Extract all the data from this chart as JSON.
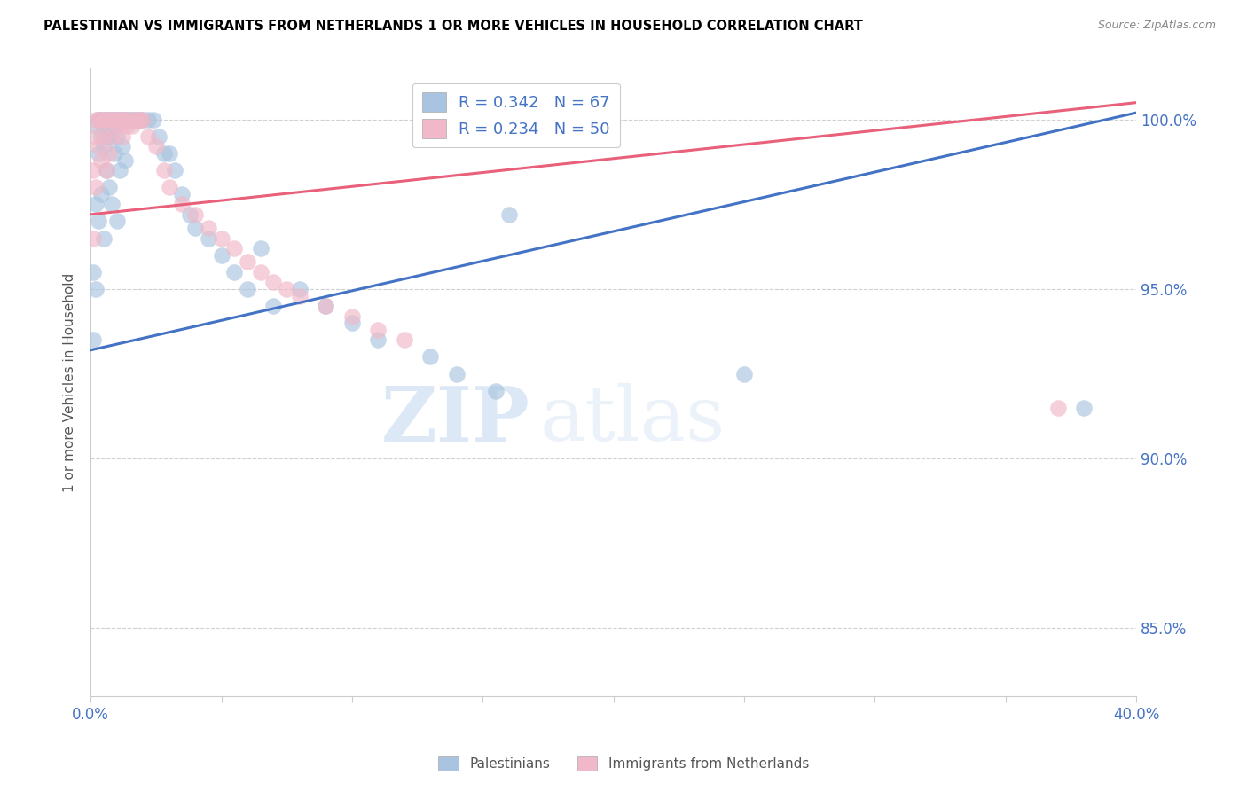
{
  "title": "PALESTINIAN VS IMMIGRANTS FROM NETHERLANDS 1 OR MORE VEHICLES IN HOUSEHOLD CORRELATION CHART",
  "source": "Source: ZipAtlas.com",
  "ylabel": "1 or more Vehicles in Household",
  "ytick_vals": [
    85.0,
    90.0,
    95.0,
    100.0
  ],
  "ytick_labels": [
    "85.0%",
    "90.0%",
    "95.0%",
    "100.0%"
  ],
  "xlim": [
    0.0,
    0.4
  ],
  "ylim": [
    83.0,
    101.5
  ],
  "pal_color": "#a8c4e0",
  "neth_color": "#f0b8c8",
  "pal_line_color": "#4472C4",
  "neth_line_color": "#E8607A",
  "pal_R": 0.342,
  "pal_N": 67,
  "neth_R": 0.234,
  "neth_N": 50,
  "legend_label_pal": "Palestinians",
  "legend_label_neth": "Immigrants from Netherlands",
  "watermark_zip": "ZIP",
  "watermark_atlas": "atlas",
  "pal_line_x0": 0.0,
  "pal_line_y0": 93.2,
  "pal_line_x1": 0.4,
  "pal_line_y1": 100.2,
  "neth_line_x0": 0.0,
  "neth_line_y0": 97.2,
  "neth_line_x1": 0.4,
  "neth_line_y1": 100.5,
  "pal_x": [
    0.001,
    0.001,
    0.002,
    0.002,
    0.002,
    0.003,
    0.003,
    0.003,
    0.003,
    0.004,
    0.004,
    0.004,
    0.005,
    0.005,
    0.005,
    0.006,
    0.006,
    0.006,
    0.007,
    0.007,
    0.007,
    0.008,
    0.008,
    0.008,
    0.009,
    0.009,
    0.01,
    0.01,
    0.01,
    0.011,
    0.011,
    0.012,
    0.012,
    0.013,
    0.013,
    0.014,
    0.015,
    0.016,
    0.017,
    0.018,
    0.019,
    0.02,
    0.022,
    0.024,
    0.026,
    0.028,
    0.03,
    0.032,
    0.035,
    0.038,
    0.04,
    0.045,
    0.05,
    0.055,
    0.06,
    0.065,
    0.07,
    0.08,
    0.09,
    0.1,
    0.11,
    0.13,
    0.14,
    0.155,
    0.16,
    0.25,
    0.38
  ],
  "pal_y": [
    95.5,
    93.5,
    99.8,
    97.5,
    95.0,
    100.0,
    100.0,
    99.0,
    97.0,
    100.0,
    99.5,
    97.8,
    100.0,
    99.2,
    96.5,
    100.0,
    99.5,
    98.5,
    100.0,
    99.5,
    98.0,
    100.0,
    99.6,
    97.5,
    100.0,
    99.0,
    100.0,
    99.5,
    97.0,
    100.0,
    98.5,
    100.0,
    99.2,
    100.0,
    98.8,
    100.0,
    100.0,
    100.0,
    100.0,
    100.0,
    100.0,
    100.0,
    100.0,
    100.0,
    99.5,
    99.0,
    99.0,
    98.5,
    97.8,
    97.2,
    96.8,
    96.5,
    96.0,
    95.5,
    95.0,
    96.2,
    94.5,
    95.0,
    94.5,
    94.0,
    93.5,
    93.0,
    92.5,
    92.0,
    97.2,
    92.5,
    91.5
  ],
  "neth_x": [
    0.001,
    0.001,
    0.002,
    0.002,
    0.002,
    0.003,
    0.003,
    0.004,
    0.004,
    0.005,
    0.005,
    0.006,
    0.006,
    0.007,
    0.007,
    0.008,
    0.008,
    0.009,
    0.01,
    0.01,
    0.011,
    0.012,
    0.012,
    0.013,
    0.014,
    0.015,
    0.016,
    0.017,
    0.018,
    0.019,
    0.02,
    0.022,
    0.025,
    0.028,
    0.03,
    0.035,
    0.04,
    0.045,
    0.05,
    0.055,
    0.06,
    0.065,
    0.07,
    0.075,
    0.08,
    0.09,
    0.1,
    0.11,
    0.12,
    0.37
  ],
  "neth_y": [
    98.5,
    96.5,
    100.0,
    99.5,
    98.0,
    100.0,
    99.2,
    100.0,
    98.8,
    100.0,
    99.5,
    100.0,
    98.5,
    100.0,
    99.0,
    100.0,
    99.5,
    100.0,
    100.0,
    99.8,
    100.0,
    100.0,
    99.5,
    100.0,
    99.8,
    100.0,
    99.8,
    100.0,
    100.0,
    100.0,
    100.0,
    99.5,
    99.2,
    98.5,
    98.0,
    97.5,
    97.2,
    96.8,
    96.5,
    96.2,
    95.8,
    95.5,
    95.2,
    95.0,
    94.8,
    94.5,
    94.2,
    93.8,
    93.5,
    91.5
  ]
}
